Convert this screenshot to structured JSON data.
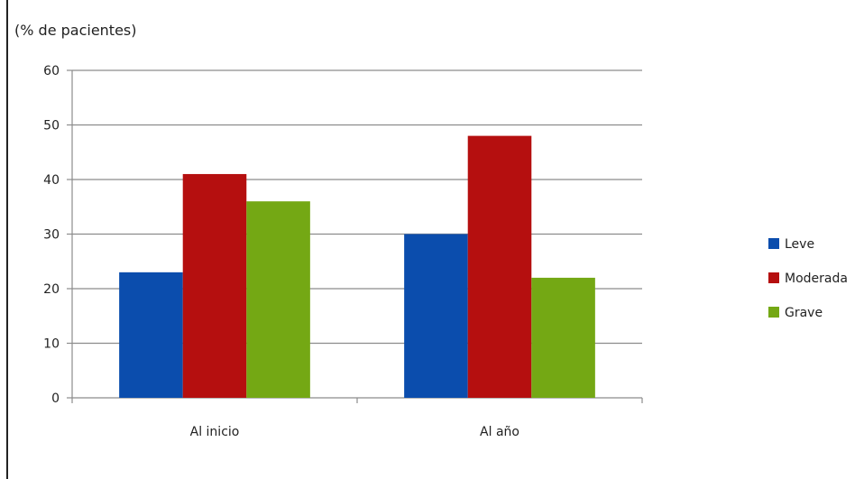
{
  "chart_data": {
    "type": "bar",
    "ylabel": "(% de pacientes)",
    "xlabel": "",
    "title": "",
    "categories": [
      "Al inicio",
      "Al año"
    ],
    "series": [
      {
        "name": "Leve",
        "values": [
          23,
          30
        ],
        "color": "#0b4dad"
      },
      {
        "name": "Moderada",
        "values": [
          41,
          48
        ],
        "color": "#b50f0f"
      },
      {
        "name": "Grave",
        "values": [
          36,
          22
        ],
        "color": "#74a814"
      }
    ],
    "ylim": [
      0,
      60
    ],
    "yticks": [
      0,
      10,
      20,
      30,
      40,
      50,
      60
    ],
    "grid": true,
    "legend": "right"
  }
}
